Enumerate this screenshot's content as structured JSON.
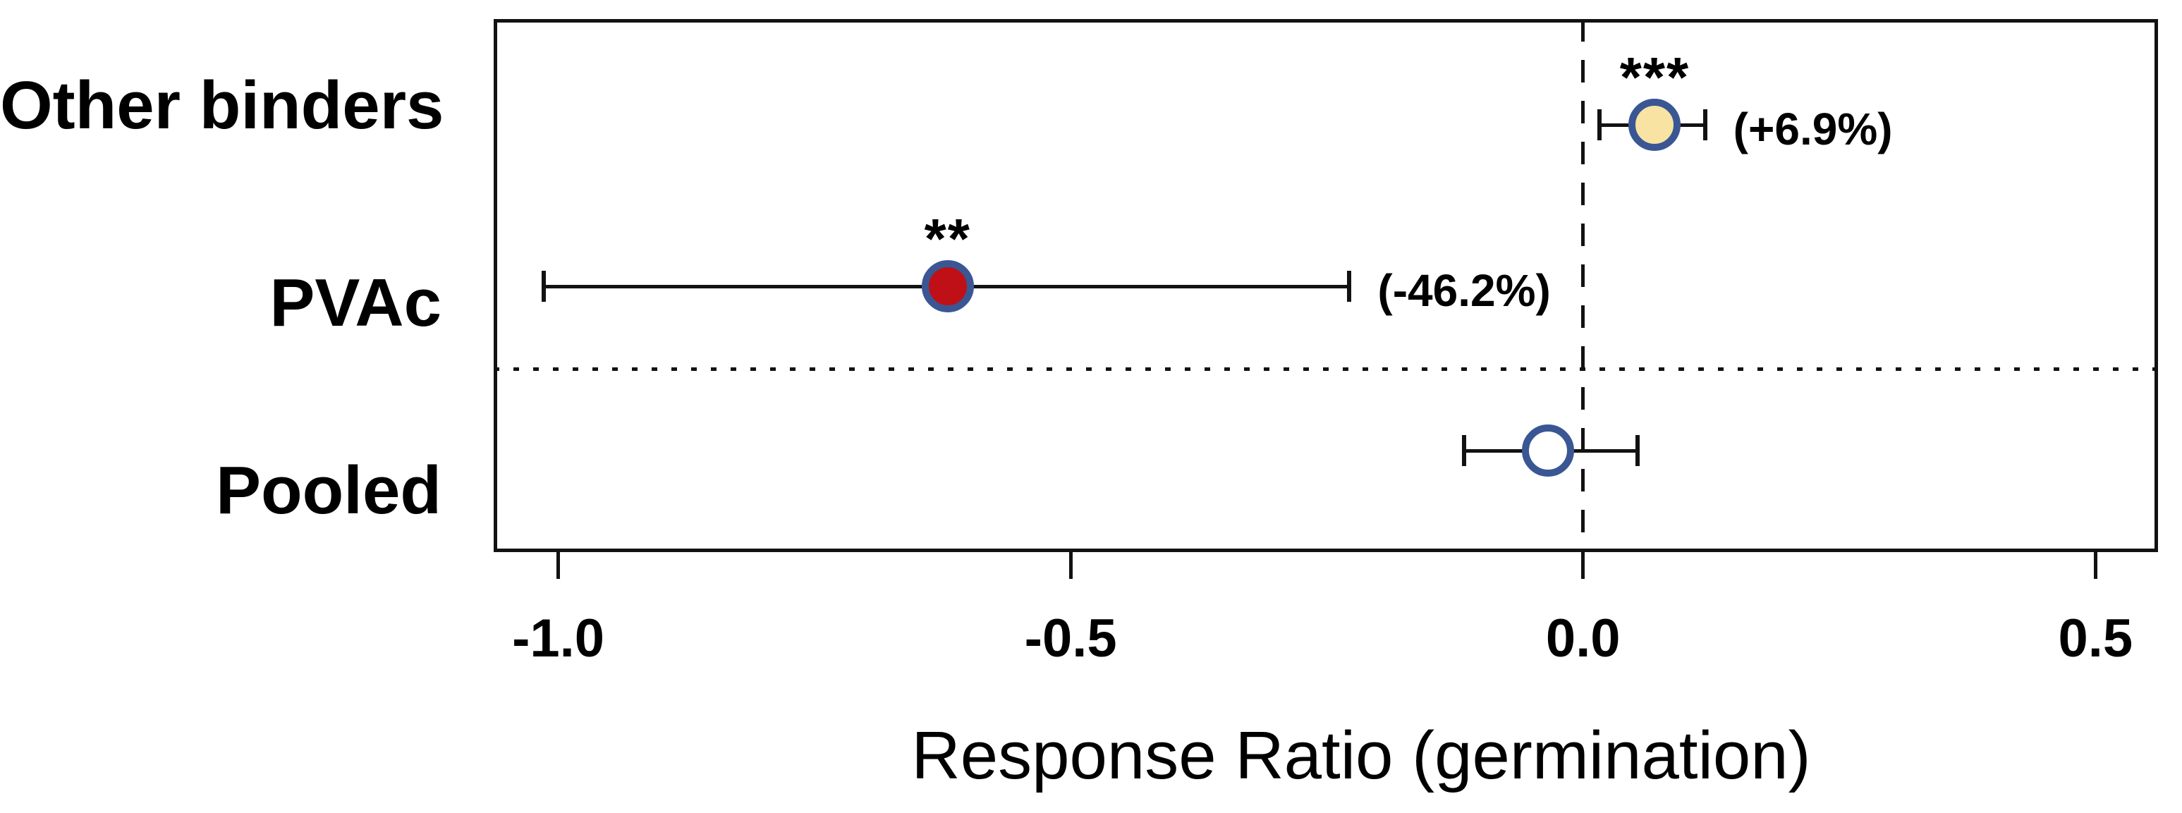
{
  "chart_data": {
    "type": "scatter",
    "subtype": "forest-plot-horizontal",
    "title": "",
    "xlabel": "Response Ratio (germination)",
    "ylabel": "",
    "xlim": [
      -1.063,
      0.561
    ],
    "grid": false,
    "legend": "none",
    "x_ticks": [
      {
        "value": -1.0,
        "label": "-1.0"
      },
      {
        "value": -0.5,
        "label": "-0.5"
      },
      {
        "value": 0.0,
        "label": "0.0"
      },
      {
        "value": 0.5,
        "label": "0.5"
      }
    ],
    "zero_reference_line": {
      "value": 0.0,
      "style": "dashed"
    },
    "separator": {
      "style": "dotted",
      "between_categories": [
        "PVAc",
        "Pooled"
      ]
    },
    "rows": [
      {
        "category": "Other binders",
        "value": 0.07,
        "ci_low": 0.016,
        "ci_high": 0.119,
        "significance": "***",
        "effect_label": "(+6.9%)",
        "marker_fill": "#F8E3A3",
        "marker_ring": "#3A5794"
      },
      {
        "category": "PVAc",
        "value": -0.62,
        "ci_low": -1.014,
        "ci_high": -0.228,
        "significance": "**",
        "effect_label": "(-46.2%)",
        "marker_fill": "#BE1016",
        "marker_ring": "#3A5794"
      },
      {
        "category": "Pooled",
        "value": -0.034,
        "ci_low": -0.116,
        "ci_high": 0.053,
        "significance": "",
        "effect_label": "",
        "marker_fill": "#FFFFFF",
        "marker_ring": "#3A5794"
      }
    ],
    "colors": {
      "line": "#121212",
      "text": "#000000",
      "background": "#FFFFFF",
      "ring_blue": "#3A5794",
      "fill_cream": "#F8E3A3",
      "fill_red": "#BE1016",
      "fill_white": "#FFFFFF"
    }
  }
}
